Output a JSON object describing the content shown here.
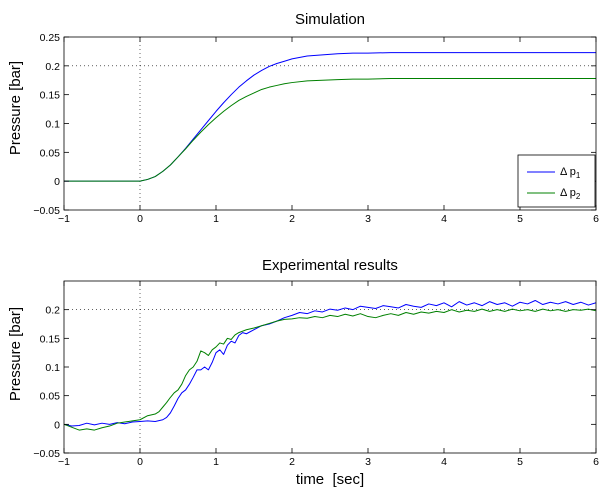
{
  "chart_data": [
    {
      "type": "line",
      "title": "Simulation",
      "xlabel": "",
      "ylabel": "Pressure [bar]",
      "xlim": [
        -1,
        6
      ],
      "ylim": [
        -0.05,
        0.25
      ],
      "xticks": [
        -1,
        0,
        1,
        2,
        3,
        4,
        5,
        6
      ],
      "xtick_labels": [
        "−1",
        "0",
        "1",
        "2",
        "3",
        "4",
        "5",
        "6"
      ],
      "yticks": [
        -0.05,
        0,
        0.05,
        0.1,
        0.15,
        0.2,
        0.25
      ],
      "ytick_labels": [
        "−0.05",
        "0",
        "0.05",
        "0.1",
        "0.15",
        "0.2",
        "0.25"
      ],
      "reference_lines": {
        "x": 0,
        "y": 0.2,
        "style": "dotted"
      },
      "legend": {
        "placement": "lower-right",
        "entries": [
          {
            "symbol": "Δ p",
            "subscript": "1"
          },
          {
            "symbol": "Δ p",
            "subscript": "2"
          }
        ]
      },
      "series": [
        {
          "color": "#0000ff",
          "x": [
            -1,
            -0.5,
            0,
            0.1,
            0.2,
            0.3,
            0.4,
            0.5,
            0.6,
            0.7,
            0.8,
            0.9,
            1.0,
            1.1,
            1.2,
            1.3,
            1.4,
            1.5,
            1.6,
            1.7,
            1.8,
            1.9,
            2.0,
            2.2,
            2.4,
            2.6,
            2.8,
            3.0,
            3.3,
            3.6,
            4.0,
            4.5,
            5.0,
            5.5,
            6.0
          ],
          "y": [
            0,
            0,
            0,
            0.003,
            0.008,
            0.017,
            0.028,
            0.042,
            0.057,
            0.073,
            0.089,
            0.105,
            0.121,
            0.136,
            0.15,
            0.163,
            0.174,
            0.184,
            0.192,
            0.199,
            0.204,
            0.208,
            0.212,
            0.217,
            0.219,
            0.221,
            0.222,
            0.222,
            0.223,
            0.223,
            0.223,
            0.223,
            0.223,
            0.223,
            0.223
          ]
        },
        {
          "color": "#008000",
          "x": [
            -1,
            -0.5,
            0,
            0.1,
            0.2,
            0.3,
            0.4,
            0.5,
            0.6,
            0.7,
            0.8,
            0.9,
            1.0,
            1.1,
            1.2,
            1.3,
            1.4,
            1.5,
            1.6,
            1.7,
            1.8,
            1.9,
            2.0,
            2.2,
            2.4,
            2.6,
            2.8,
            3.0,
            3.3,
            3.6,
            4.0,
            4.5,
            5.0,
            5.5,
            6.0
          ],
          "y": [
            0,
            0,
            0,
            0.003,
            0.008,
            0.017,
            0.028,
            0.042,
            0.056,
            0.071,
            0.085,
            0.098,
            0.11,
            0.121,
            0.131,
            0.14,
            0.147,
            0.153,
            0.159,
            0.163,
            0.166,
            0.169,
            0.171,
            0.174,
            0.175,
            0.176,
            0.177,
            0.177,
            0.178,
            0.178,
            0.178,
            0.178,
            0.178,
            0.178,
            0.178
          ]
        }
      ]
    },
    {
      "type": "line",
      "title": "Experimental results",
      "xlabel": "time  [sec]",
      "ylabel": "Pressure [bar]",
      "xlim": [
        -1,
        6
      ],
      "ylim": [
        -0.05,
        0.25
      ],
      "xticks": [
        -1,
        0,
        1,
        2,
        3,
        4,
        5,
        6
      ],
      "xtick_labels": [
        "−1",
        "0",
        "1",
        "2",
        "3",
        "4",
        "5",
        "6"
      ],
      "yticks": [
        -0.05,
        0,
        0.05,
        0.1,
        0.15,
        0.2
      ],
      "ytick_labels": [
        "−0.05",
        "0",
        "0.05",
        "0.1",
        "0.15",
        "0.2"
      ],
      "reference_lines": {
        "x": 0,
        "y": 0.2,
        "style": "dotted"
      },
      "series": [
        {
          "color": "#0000ff",
          "x": [
            -1,
            -0.9,
            -0.8,
            -0.7,
            -0.6,
            -0.5,
            -0.4,
            -0.3,
            -0.2,
            -0.1,
            0,
            0.1,
            0.2,
            0.3,
            0.35,
            0.4,
            0.45,
            0.5,
            0.55,
            0.6,
            0.65,
            0.7,
            0.75,
            0.8,
            0.85,
            0.9,
            0.95,
            1.0,
            1.05,
            1.1,
            1.15,
            1.2,
            1.25,
            1.3,
            1.35,
            1.4,
            1.5,
            1.6,
            1.7,
            1.8,
            1.9,
            2.0,
            2.1,
            2.2,
            2.3,
            2.4,
            2.5,
            2.6,
            2.7,
            2.8,
            2.9,
            3.0,
            3.1,
            3.2,
            3.3,
            3.4,
            3.5,
            3.6,
            3.7,
            3.8,
            3.9,
            4.0,
            4.1,
            4.2,
            4.3,
            4.4,
            4.5,
            4.6,
            4.7,
            4.8,
            4.9,
            5.0,
            5.1,
            5.2,
            5.3,
            5.4,
            5.5,
            5.6,
            5.7,
            5.8,
            5.9,
            6.0
          ],
          "y": [
            0,
            -0.003,
            -0.002,
            0.002,
            -0.001,
            0.002,
            0,
            0.003,
            0.001,
            0.004,
            0.005,
            0.006,
            0.005,
            0.008,
            0.012,
            0.02,
            0.032,
            0.045,
            0.055,
            0.06,
            0.07,
            0.082,
            0.095,
            0.095,
            0.1,
            0.095,
            0.108,
            0.125,
            0.13,
            0.122,
            0.138,
            0.145,
            0.142,
            0.155,
            0.16,
            0.158,
            0.165,
            0.172,
            0.175,
            0.18,
            0.186,
            0.19,
            0.195,
            0.193,
            0.198,
            0.196,
            0.201,
            0.199,
            0.203,
            0.2,
            0.206,
            0.204,
            0.202,
            0.207,
            0.205,
            0.203,
            0.209,
            0.206,
            0.204,
            0.21,
            0.207,
            0.212,
            0.205,
            0.214,
            0.208,
            0.212,
            0.207,
            0.214,
            0.209,
            0.212,
            0.206,
            0.213,
            0.21,
            0.216,
            0.209,
            0.213,
            0.21,
            0.214,
            0.209,
            0.213,
            0.208,
            0.212
          ]
        },
        {
          "color": "#008000",
          "x": [
            -1,
            -0.9,
            -0.8,
            -0.7,
            -0.6,
            -0.5,
            -0.4,
            -0.3,
            -0.2,
            -0.1,
            0,
            0.1,
            0.2,
            0.25,
            0.3,
            0.35,
            0.4,
            0.45,
            0.5,
            0.55,
            0.6,
            0.65,
            0.7,
            0.75,
            0.8,
            0.85,
            0.9,
            0.95,
            1.0,
            1.05,
            1.1,
            1.15,
            1.2,
            1.25,
            1.3,
            1.4,
            1.5,
            1.6,
            1.7,
            1.8,
            1.9,
            2.0,
            2.1,
            2.2,
            2.3,
            2.4,
            2.5,
            2.6,
            2.7,
            2.8,
            2.9,
            3.0,
            3.1,
            3.2,
            3.3,
            3.4,
            3.5,
            3.6,
            3.7,
            3.8,
            3.9,
            4.0,
            4.1,
            4.2,
            4.3,
            4.4,
            4.5,
            4.6,
            4.7,
            4.8,
            4.9,
            5.0,
            5.1,
            5.2,
            5.3,
            5.4,
            5.5,
            5.6,
            5.7,
            5.8,
            5.9,
            6.0
          ],
          "y": [
            0,
            -0.005,
            -0.01,
            -0.008,
            -0.01,
            -0.006,
            -0.003,
            0.002,
            0.004,
            0.006,
            0.008,
            0.015,
            0.018,
            0.022,
            0.03,
            0.038,
            0.047,
            0.055,
            0.06,
            0.07,
            0.085,
            0.095,
            0.1,
            0.11,
            0.128,
            0.125,
            0.12,
            0.13,
            0.135,
            0.142,
            0.14,
            0.15,
            0.148,
            0.156,
            0.16,
            0.165,
            0.168,
            0.172,
            0.176,
            0.18,
            0.183,
            0.184,
            0.186,
            0.185,
            0.188,
            0.186,
            0.19,
            0.188,
            0.192,
            0.189,
            0.193,
            0.188,
            0.186,
            0.19,
            0.193,
            0.19,
            0.195,
            0.192,
            0.196,
            0.194,
            0.197,
            0.195,
            0.2,
            0.196,
            0.199,
            0.197,
            0.201,
            0.197,
            0.2,
            0.197,
            0.201,
            0.198,
            0.2,
            0.197,
            0.201,
            0.198,
            0.2,
            0.197,
            0.2,
            0.199,
            0.201,
            0.198
          ]
        }
      ]
    }
  ]
}
